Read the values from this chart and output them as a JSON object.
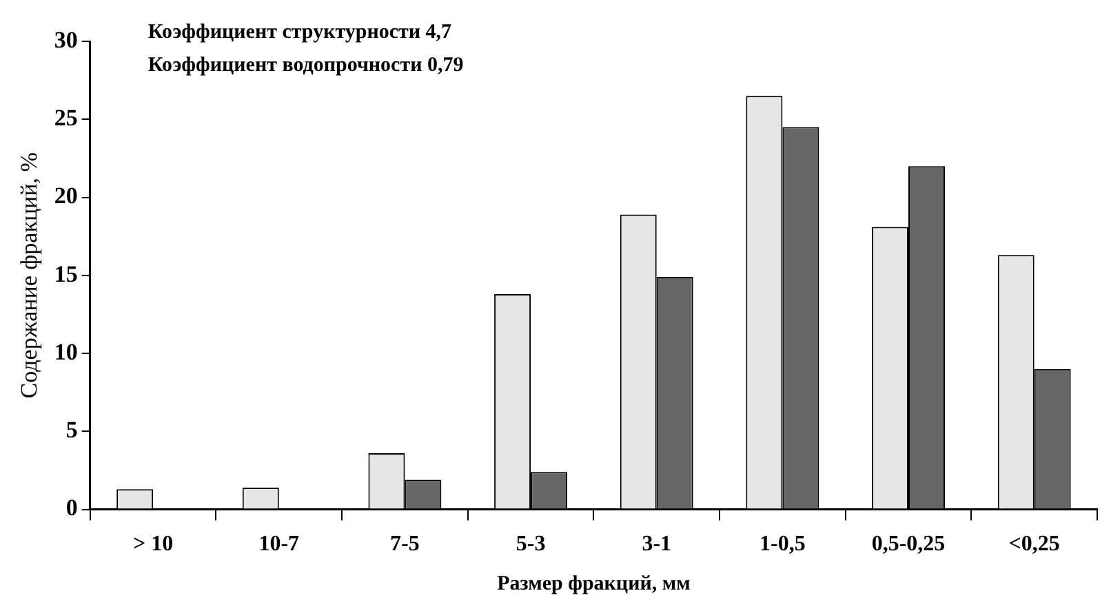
{
  "chart_data": {
    "type": "bar",
    "xlabel": "Размер фракций, мм",
    "ylabel": "Содержание фракций, %",
    "annotations": [
      "Коэффициент структурности 4,7",
      "Коэффициент водопрочности 0,79"
    ],
    "categories": [
      "> 10",
      "10-7",
      "7-5",
      "5-3",
      "3-1",
      "1-0,5",
      "0,5-0,25",
      "<0,25"
    ],
    "series": [
      {
        "color": "#e6e6e6",
        "values": [
          1.3,
          1.4,
          3.6,
          13.8,
          18.9,
          26.5,
          18.1,
          16.3
        ]
      },
      {
        "color": "#666666",
        "values": [
          0,
          0,
          1.9,
          2.4,
          14.9,
          24.5,
          22.0,
          9.0
        ]
      }
    ],
    "ylim": [
      0,
      30
    ],
    "yticks": [
      0,
      5,
      10,
      15,
      20,
      25,
      30
    ],
    "grid": false,
    "legend": false
  }
}
